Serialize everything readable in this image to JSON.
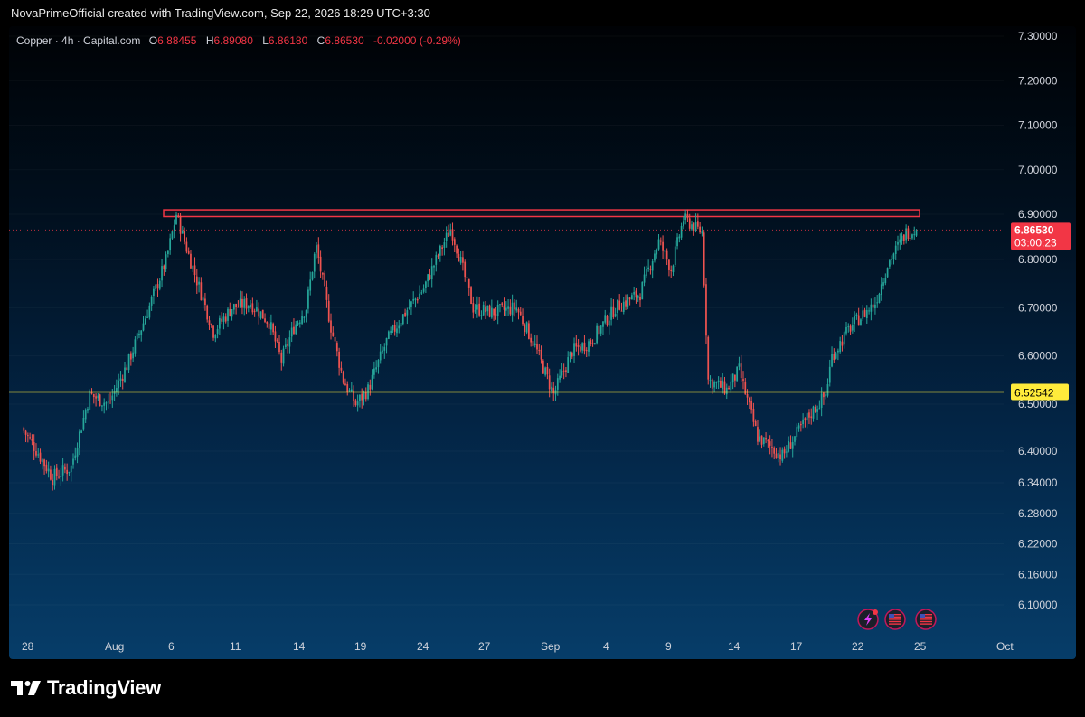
{
  "header": {
    "attribution": "NovaPrimeOfficial created with TradingView.com, Sep 22, 2026 18:29 UTC+3:30"
  },
  "legend": {
    "symbol": "Copper · 4h · Capital.com",
    "open_label": "O",
    "open": "6.88455",
    "high_label": "H",
    "high": "6.89080",
    "low_label": "L",
    "low": "6.86180",
    "close_label": "C",
    "close": "6.86530",
    "change": "-0.02000 (-0.29%)"
  },
  "price_axis": {
    "labels": [
      "7.30000",
      "7.20000",
      "7.10000",
      "7.00000",
      "6.90000",
      "6.80000",
      "6.70000",
      "6.60000",
      "6.50000",
      "6.40000",
      "6.34000",
      "6.28000",
      "6.22000",
      "6.16000",
      "6.10000"
    ]
  },
  "time_axis": {
    "labels": [
      "28",
      "Aug",
      "6",
      "11",
      "14",
      "19",
      "24",
      "27",
      "Sep",
      "4",
      "9",
      "14",
      "17",
      "22",
      "25",
      "Oct"
    ]
  },
  "last_price": {
    "value": "6.86530",
    "countdown": "03:00:23",
    "color": "#f23645"
  },
  "support_line": {
    "value": "6.52542",
    "color": "#ffeb3b"
  },
  "resistance_zone": {
    "top": 6.91,
    "bottom": 6.895,
    "color": "#f23645"
  },
  "event_icons": [
    "lightning-icon",
    "us-flag-icon",
    "us-flag-icon"
  ],
  "footer": {
    "brand": "TradingView"
  },
  "colors": {
    "up": "#26a69a",
    "down": "#ef5350",
    "background_top": "#000205",
    "background_bottom": "#063d69"
  },
  "chart_data": {
    "type": "candlestick",
    "title": "Copper · 4h · Capital.com",
    "interval": "4h",
    "ylim": [
      6.05,
      7.33
    ],
    "x_ticks": [
      "28",
      "Aug",
      "6",
      "11",
      "14",
      "19",
      "24",
      "27",
      "Sep",
      "4",
      "9",
      "14",
      "17",
      "22",
      "25",
      "Oct"
    ],
    "path_close": [
      [
        0,
        6.45
      ],
      [
        2.5,
        6.35
      ],
      [
        4,
        6.37
      ],
      [
        5.5,
        6.52
      ],
      [
        7,
        6.5
      ],
      [
        8.5,
        6.58
      ],
      [
        10,
        6.68
      ],
      [
        11.7,
        6.8
      ],
      [
        12.5,
        6.9
      ],
      [
        13.5,
        6.81
      ],
      [
        15.5,
        6.65
      ],
      [
        17,
        6.7
      ],
      [
        18.5,
        6.71
      ],
      [
        20,
        6.67
      ],
      [
        21,
        6.59
      ],
      [
        22,
        6.66
      ],
      [
        23,
        6.7
      ],
      [
        23.8,
        6.83
      ],
      [
        25,
        6.66
      ],
      [
        26,
        6.55
      ],
      [
        27,
        6.5
      ],
      [
        28,
        6.53
      ],
      [
        29.5,
        6.63
      ],
      [
        31,
        6.69
      ],
      [
        32.5,
        6.74
      ],
      [
        34.7,
        6.87
      ],
      [
        36.5,
        6.7
      ],
      [
        38,
        6.69
      ],
      [
        40,
        6.7
      ],
      [
        41.5,
        6.62
      ],
      [
        43,
        6.52
      ],
      [
        44.5,
        6.61
      ],
      [
        46,
        6.63
      ],
      [
        48,
        6.7
      ],
      [
        50,
        6.73
      ],
      [
        51.5,
        6.84
      ],
      [
        52.5,
        6.78
      ],
      [
        53.5,
        6.89
      ],
      [
        55,
        6.86
      ],
      [
        55.5,
        6.55
      ],
      [
        57,
        6.53
      ],
      [
        58,
        6.57
      ],
      [
        59.5,
        6.43
      ],
      [
        61.5,
        6.39
      ],
      [
        63.5,
        6.47
      ],
      [
        65,
        6.52
      ],
      [
        65.5,
        6.6
      ],
      [
        67,
        6.66
      ],
      [
        69,
        6.71
      ],
      [
        70,
        6.79
      ],
      [
        71.5,
        6.86
      ],
      [
        72.3,
        6.8653
      ]
    ]
  }
}
